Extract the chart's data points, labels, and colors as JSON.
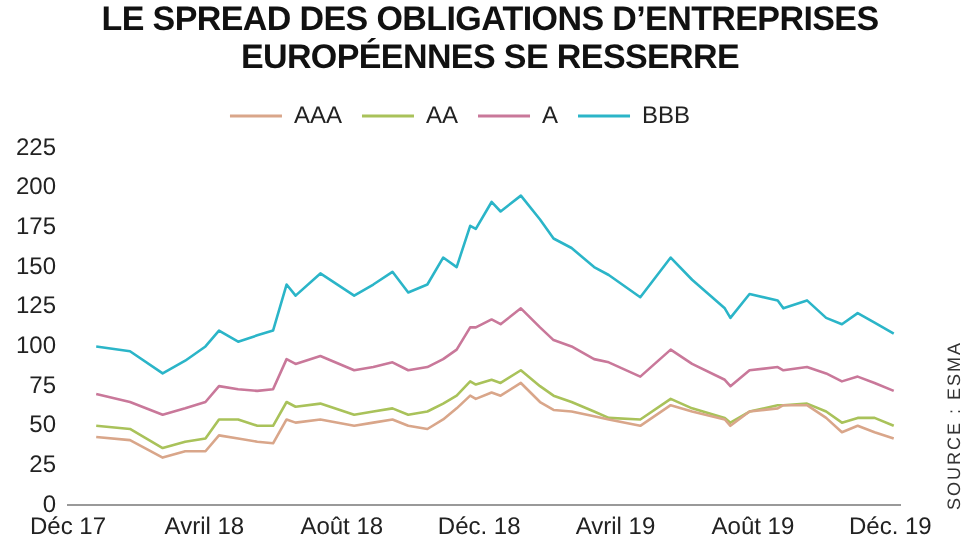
{
  "chart_data": {
    "type": "line",
    "title": "LE SPREAD DES OBLIGATIONS D’ENTREPRISES EUROPÉENNES SE RESSERRE",
    "x": [
      "2017-12-26",
      "2018-01-25",
      "2018-02-23",
      "2018-03-15",
      "2018-04-02",
      "2018-04-14",
      "2018-05-01",
      "2018-05-18",
      "2018-06-01",
      "2018-06-13",
      "2018-06-21",
      "2018-07-13",
      "2018-08-12",
      "2018-08-29",
      "2018-09-15",
      "2018-09-29",
      "2018-10-16",
      "2018-10-30",
      "2018-11-11",
      "2018-11-23",
      "2018-11-28",
      "2018-12-12",
      "2018-12-20",
      "2019-01-07",
      "2019-01-24",
      "2019-02-05",
      "2019-02-21",
      "2019-03-13",
      "2019-03-26",
      "2019-04-23",
      "2019-05-20",
      "2019-06-08",
      "2019-07-07",
      "2019-07-12",
      "2019-07-29",
      "2019-08-23",
      "2019-08-28",
      "2019-09-18",
      "2019-10-05",
      "2019-10-19",
      "2019-11-02",
      "2019-11-17",
      "2019-12-04"
    ],
    "series": [
      {
        "name": "AAA",
        "color": "#d9a68a",
        "values": [
          43,
          41,
          30,
          34,
          34,
          44,
          42,
          40,
          39,
          54,
          52,
          54,
          50,
          52,
          54,
          50,
          48,
          54,
          61,
          69,
          67,
          71,
          69,
          77,
          65,
          60,
          59,
          56,
          54,
          50,
          63,
          59,
          54,
          50,
          59,
          61,
          63,
          63,
          55,
          46,
          50,
          46,
          42
        ]
      },
      {
        "name": "AA",
        "color": "#a9c25a",
        "values": [
          50,
          48,
          36,
          40,
          42,
          54,
          54,
          50,
          50,
          65,
          62,
          64,
          57,
          59,
          61,
          57,
          59,
          64,
          69,
          78,
          76,
          79,
          77,
          85,
          75,
          69,
          65,
          59,
          55,
          54,
          67,
          61,
          55,
          52,
          59,
          63,
          63,
          64,
          59,
          52,
          55,
          55,
          50
        ]
      },
      {
        "name": "A",
        "color": "#c9789a",
        "values": [
          70,
          65,
          57,
          61,
          65,
          75,
          73,
          72,
          73,
          92,
          89,
          94,
          85,
          87,
          90,
          85,
          87,
          92,
          98,
          112,
          112,
          117,
          114,
          124,
          112,
          104,
          100,
          92,
          90,
          81,
          98,
          89,
          79,
          75,
          85,
          87,
          85,
          87,
          83,
          78,
          81,
          77,
          72
        ]
      },
      {
        "name": "BBB",
        "color": "#2bb5c8",
        "values": [
          100,
          97,
          83,
          91,
          100,
          110,
          103,
          107,
          110,
          139,
          132,
          146,
          132,
          139,
          147,
          134,
          139,
          156,
          150,
          176,
          174,
          191,
          185,
          195,
          180,
          168,
          162,
          150,
          145,
          131,
          156,
          142,
          124,
          118,
          133,
          129,
          124,
          129,
          118,
          114,
          121,
          115,
          108
        ]
      }
    ],
    "xlim": [
      "2017-12-01",
      "2019-12-10"
    ],
    "xticks": [
      {
        "value": "2017-12-01",
        "label": "Déc 17"
      },
      {
        "value": "2018-04-01",
        "label": "Avril 18"
      },
      {
        "value": "2018-08-01",
        "label": "Août 18"
      },
      {
        "value": "2018-12-01",
        "label": "Déc. 18"
      },
      {
        "value": "2019-04-01",
        "label": "Avril 19"
      },
      {
        "value": "2019-08-01",
        "label": "Août 19"
      },
      {
        "value": "2019-12-01",
        "label": "Déc. 19"
      }
    ],
    "ylim": [
      0,
      225
    ],
    "yticks": [
      0,
      25,
      50,
      75,
      100,
      125,
      150,
      175,
      200,
      225
    ],
    "grid": false,
    "legend": "top",
    "marker": "none",
    "line_style": "solid",
    "annotations": [
      "SOURCE : ESMA"
    ]
  }
}
